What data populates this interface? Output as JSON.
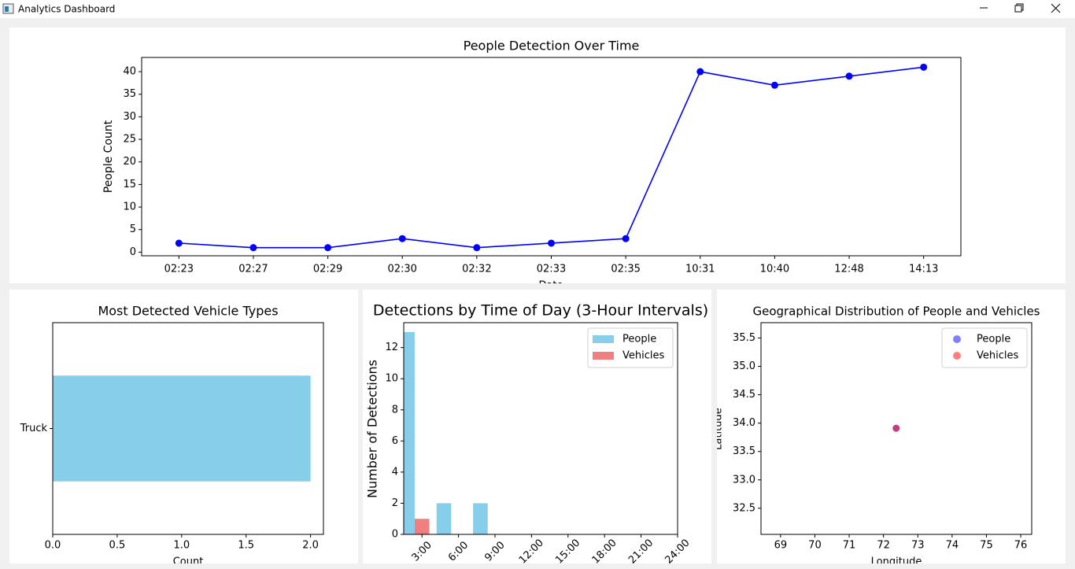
{
  "window": {
    "title": "Analytics Dashboard"
  },
  "chart_data": [
    {
      "type": "line",
      "title": "People Detection Over Time",
      "x_label": "Date",
      "y_label": "People Count",
      "categories": [
        "02:23",
        "02:27",
        "02:29",
        "02:30",
        "02:32",
        "02:33",
        "02:35",
        "10:31",
        "10:40",
        "12:48",
        "14:13"
      ],
      "values": [
        2,
        1,
        1,
        3,
        1,
        2,
        3,
        40,
        37,
        39,
        41
      ],
      "color": "#0000ff",
      "ylim": [
        -0.8,
        43.15
      ],
      "yticks": [
        0,
        5,
        10,
        15,
        20,
        25,
        30,
        35,
        40
      ]
    },
    {
      "type": "barh",
      "title": "Most Detected Vehicle Types",
      "x_label": "Count",
      "categories": [
        "Truck"
      ],
      "values": [
        2
      ],
      "color": "#87ceeb",
      "xlim": [
        0,
        2.1
      ],
      "xticks": [
        {
          "value": 0,
          "label": "0.0"
        },
        0.5,
        {
          "value": 1,
          "label": "1.0"
        },
        1.5,
        {
          "value": 2,
          "label": "2.0"
        }
      ]
    },
    {
      "type": "bar",
      "title": "Detections by Time of Day (3-Hour Intervals)",
      "y_label": "Number of Detections",
      "x": [
        3,
        6,
        9
      ],
      "series": [
        {
          "name": "People",
          "color": "#87ceeb",
          "values": [
            13,
            2,
            2
          ]
        },
        {
          "name": "Vehicles",
          "color": "#f08080",
          "values": [
            1,
            0,
            0
          ]
        }
      ],
      "xlim": [
        1.5,
        24
      ],
      "xticks": [
        {
          "value": 3,
          "label": "3:00"
        },
        {
          "value": 6,
          "label": "6:00"
        },
        {
          "value": 9,
          "label": "9:00"
        },
        {
          "value": 12,
          "label": "12:00"
        },
        {
          "value": 15,
          "label": "15:00"
        },
        {
          "value": 18,
          "label": "18:00"
        },
        {
          "value": 21,
          "label": "21:00"
        },
        {
          "value": 24,
          "label": "24:00"
        }
      ],
      "xtick_rotation": 45,
      "ylim": [
        0,
        13.6
      ],
      "yticks": [
        0,
        2,
        4,
        6,
        8,
        10,
        12
      ],
      "legend": "upper right"
    },
    {
      "type": "scatter",
      "title": "Geographical Distribution of People and Vehicles",
      "x_label": "Longitude",
      "y_label": "Latitude",
      "series": [
        {
          "name": "People",
          "color": "#0000ff",
          "x": [
            72.37
          ],
          "y": [
            33.91
          ]
        },
        {
          "name": "Vehicles",
          "color": "#ff0000",
          "x": [
            72.37
          ],
          "y": [
            33.91
          ]
        }
      ],
      "xlim": [
        68.43,
        76.32
      ],
      "xticks": [
        69,
        70,
        71,
        72,
        73,
        74,
        75,
        76
      ],
      "ylim": [
        32.04,
        35.77
      ],
      "yticks": [
        32.5,
        {
          "value": 33,
          "label": "33.0"
        },
        33.5,
        {
          "value": 34,
          "label": "34.0"
        },
        34.5,
        {
          "value": 35,
          "label": "35.0"
        },
        35.5
      ],
      "legend": "upper right"
    }
  ]
}
